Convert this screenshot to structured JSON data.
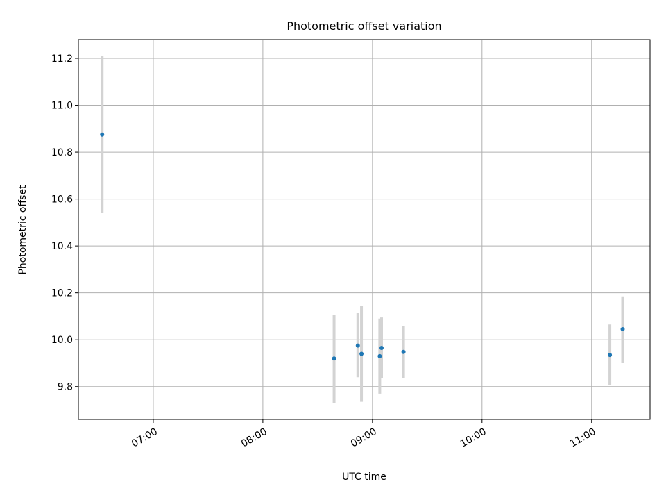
{
  "chart_data": {
    "type": "scatter",
    "title": "Photometric offset variation",
    "xlabel": "UTC time",
    "ylabel": "Photometric offset",
    "xlim": [
      "06:19",
      "11:32"
    ],
    "ylim": [
      9.66,
      11.28
    ],
    "grid": true,
    "x_ticks": [
      "07:00",
      "08:00",
      "09:00",
      "10:00",
      "11:00"
    ],
    "y_ticks": [
      "9.8",
      "10.0",
      "10.2",
      "10.4",
      "10.6",
      "10.8",
      "11.0",
      "11.2"
    ],
    "points": [
      {
        "x": "06:32",
        "y": 10.875,
        "err_low": 10.54,
        "err_high": 11.21
      },
      {
        "x": "08:39",
        "y": 9.92,
        "err_low": 9.73,
        "err_high": 10.105
      },
      {
        "x": "08:52",
        "y": 9.975,
        "err_low": 9.84,
        "err_high": 10.115
      },
      {
        "x": "08:54",
        "y": 9.94,
        "err_low": 9.735,
        "err_high": 10.145
      },
      {
        "x": "09:04",
        "y": 9.93,
        "err_low": 9.77,
        "err_high": 10.09
      },
      {
        "x": "09:05",
        "y": 9.965,
        "err_low": 9.835,
        "err_high": 10.095
      },
      {
        "x": "09:17",
        "y": 9.948,
        "err_low": 9.835,
        "err_high": 10.058
      },
      {
        "x": "11:10",
        "y": 9.935,
        "err_low": 9.805,
        "err_high": 10.065
      },
      {
        "x": "11:17",
        "y": 10.045,
        "err_low": 9.9,
        "err_high": 10.185
      }
    ],
    "colors": {
      "point": "#1f77b4",
      "errorbar": "#d3d3d3",
      "grid": "#b0b0b0"
    }
  }
}
